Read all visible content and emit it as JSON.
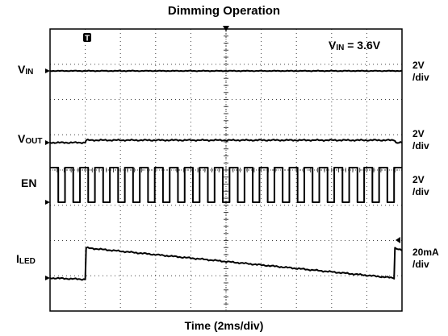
{
  "chart_data": {
    "type": "line",
    "title": "Dimming Operation",
    "xlabel": "Time (2ms/div)",
    "annotation": {
      "main": "V",
      "sub": "IN",
      "rest": " = 3.6V"
    },
    "trigger_marker": "T",
    "grid": {
      "x_divisions": 10,
      "y_divisions": 8,
      "style": "dotted"
    },
    "x": {
      "unit": "ms",
      "per_div": 2,
      "range": [
        0,
        20
      ]
    },
    "channels": [
      {
        "name": "V",
        "sub": "IN",
        "scale_value": "2V",
        "scale_unit": "/div",
        "samples": [
          [
            0,
            0
          ],
          [
            20,
            0
          ]
        ]
      },
      {
        "name": "V",
        "sub": "OUT",
        "scale_value": "2V",
        "scale_unit": "/div",
        "samples": [
          [
            0,
            0
          ],
          [
            2.0,
            0
          ],
          [
            2.05,
            0.15
          ],
          [
            19.6,
            0.15
          ],
          [
            19.65,
            0
          ],
          [
            20,
            0
          ]
        ]
      },
      {
        "name": "EN",
        "sub": "",
        "scale_value": "2V",
        "scale_unit": "/div",
        "pwm": {
          "period_ms": 0.85,
          "duty": 0.55,
          "start_ms": 0.0,
          "high": 1.0,
          "low": 0.0
        }
      },
      {
        "name": "I",
        "sub": "LED",
        "scale_value": "20mA",
        "scale_unit": "/div",
        "samples": [
          [
            0,
            0
          ],
          [
            2.0,
            -0.05
          ],
          [
            2.05,
            1.1
          ],
          [
            19.55,
            0.0
          ],
          [
            19.6,
            1.1
          ],
          [
            20,
            1.0
          ]
        ]
      }
    ]
  }
}
